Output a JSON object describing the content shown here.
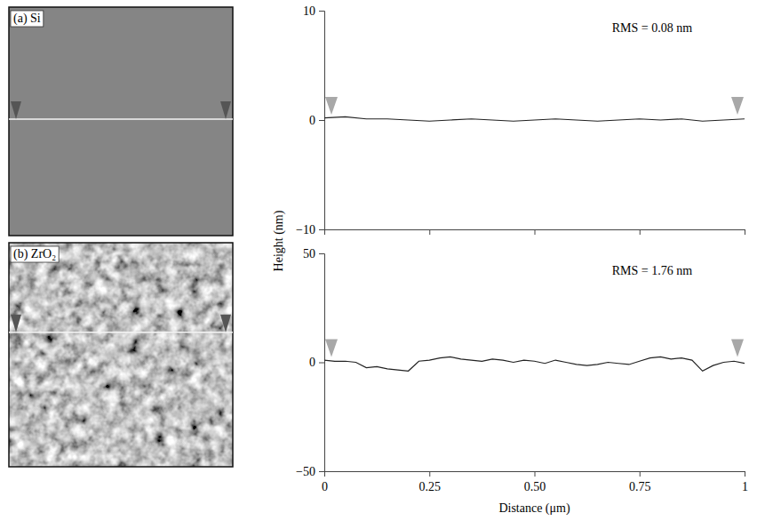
{
  "chart_data": [
    {
      "type": "line",
      "image_label": "(a) Si",
      "annotation": "RMS = 0.08 nm",
      "ylabel": "Height (nm)",
      "x": [
        0,
        0.05,
        0.1,
        0.15,
        0.2,
        0.25,
        0.3,
        0.35,
        0.4,
        0.45,
        0.5,
        0.55,
        0.6,
        0.65,
        0.7,
        0.75,
        0.8,
        0.85,
        0.9,
        0.95,
        1
      ],
      "values": [
        0.2,
        0.3,
        0.1,
        0.1,
        0,
        -0.1,
        0,
        0.1,
        0,
        -0.1,
        0,
        0.1,
        0,
        -0.1,
        0,
        0.1,
        0,
        0.1,
        -0.1,
        0,
        0.1
      ],
      "color": "#222222",
      "xlim": [
        0,
        1
      ],
      "xticks": [
        0,
        0.25,
        {
          "value": 0.5,
          "label": "0.50"
        },
        0.75,
        1
      ],
      "ylim": [
        -10,
        10
      ],
      "yticks": [
        {
          "value": -10,
          "label": "−10"
        },
        0,
        10
      ],
      "tick_labels": "y"
    },
    {
      "type": "line",
      "image_label": "(b) ZrO₂",
      "annotation": "RMS = 1.76 nm",
      "xlabel": "Distance (μm)",
      "x": [
        0,
        0.025,
        0.05,
        0.075,
        0.1,
        0.125,
        0.15,
        0.175,
        0.2,
        0.225,
        0.25,
        0.275,
        0.3,
        0.325,
        0.35,
        0.375,
        0.4,
        0.425,
        0.45,
        0.475,
        0.5,
        0.525,
        0.55,
        0.575,
        0.6,
        0.625,
        0.65,
        0.675,
        0.7,
        0.725,
        0.75,
        0.775,
        0.8,
        0.825,
        0.85,
        0.875,
        0.9,
        0.925,
        0.95,
        0.975,
        1
      ],
      "values": [
        1,
        0.5,
        0.5,
        0,
        -2.5,
        -2,
        -3,
        -3.5,
        -4,
        0.5,
        1,
        2,
        2.5,
        1.5,
        1,
        0.5,
        1.5,
        1,
        0,
        1,
        0.5,
        -0.5,
        1,
        0,
        -1,
        -1.5,
        -1,
        0,
        -0.5,
        -1,
        0.5,
        2,
        2.5,
        1.5,
        2,
        1,
        -4,
        -1.5,
        0,
        0.5,
        -0.5
      ],
      "color": "#222222",
      "xlim": [
        0,
        1
      ],
      "xticks": [
        0,
        0.25,
        {
          "value": 0.5,
          "label": "0.50"
        },
        0.75,
        1
      ],
      "ylim": [
        -50,
        50
      ],
      "yticks": [
        {
          "value": -50,
          "label": "−50"
        },
        0,
        50
      ]
    }
  ]
}
